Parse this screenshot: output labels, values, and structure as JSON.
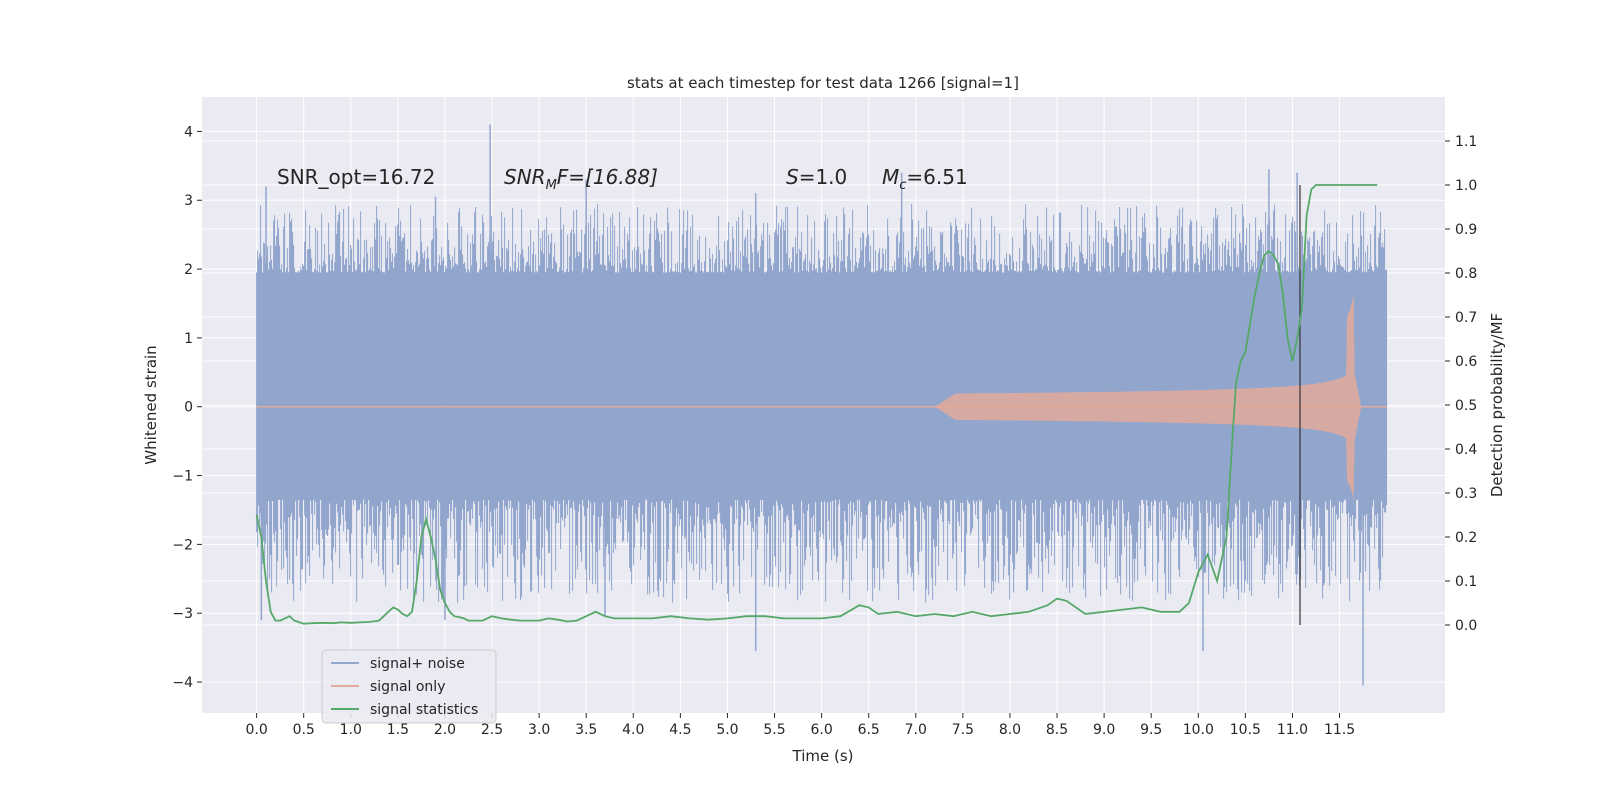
{
  "chart_data": {
    "type": "line",
    "title": "stats at each timestep for test data 1266 [signal=1]",
    "xlabel": "Time (s)",
    "ylabel": "Whitened strain",
    "y2label": "Detection probability/MF",
    "xlim": [
      -0.58,
      12.62
    ],
    "ylim": [
      -4.45,
      4.5
    ],
    "y2lim": [
      -0.2,
      1.2
    ],
    "xticks": [
      "0.0",
      "0.5",
      "1.0",
      "1.5",
      "2.0",
      "2.5",
      "3.0",
      "3.5",
      "4.0",
      "4.5",
      "5.0",
      "5.5",
      "6.0",
      "6.5",
      "7.0",
      "7.5",
      "8.0",
      "8.5",
      "9.0",
      "9.5",
      "10.0",
      "10.5",
      "11.0",
      "11.5"
    ],
    "yticks": [
      "4",
      "3",
      "2",
      "1",
      "0",
      "−1",
      "−2",
      "−3",
      "−4"
    ],
    "y2ticks": [
      "1.1",
      "1.0",
      "0.9",
      "0.8",
      "0.7",
      "0.6",
      "0.5",
      "0.4",
      "0.3",
      "0.2",
      "0.1",
      "0.0"
    ],
    "grid": true,
    "legend_position": "lower-left",
    "annotations": {
      "snr_opt": "SNR_opt=16.72",
      "snr_mf_main": "SNR",
      "snr_mf_sub": "M",
      "snr_mf_rest": "F=[16.88]",
      "s_main": "S",
      "s_rest": "=1.0",
      "mc_main": "M",
      "mc_sub": "c",
      "mc_rest": "=6.51"
    },
    "vline_x": 11.08,
    "series": [
      {
        "name": "signal+ noise",
        "color": "#92a6cd",
        "x_range": [
          0.0,
          12.0
        ],
        "band_core": [
          -1.35,
          1.95
        ],
        "peaks_high": [
          [
            0.1,
            3.2
          ],
          [
            2.48,
            4.1
          ],
          [
            1.9,
            3.05
          ],
          [
            3.5,
            3.3
          ],
          [
            5.3,
            3.1
          ],
          [
            6.85,
            3.4
          ],
          [
            10.75,
            3.45
          ],
          [
            11.05,
            3.4
          ]
        ],
        "peaks_low": [
          [
            0.05,
            -3.1
          ],
          [
            2.0,
            -3.1
          ],
          [
            3.7,
            -3.05
          ],
          [
            5.3,
            -3.55
          ],
          [
            10.05,
            -3.55
          ],
          [
            11.75,
            -4.05
          ]
        ]
      },
      {
        "name": "signal only",
        "color": "#e3a99b",
        "chirp_start": 7.2,
        "merger": 11.65,
        "end": 12.0
      },
      {
        "name": "signal statistics",
        "color": "#55a868",
        "x": [
          0.0,
          0.05,
          0.1,
          0.15,
          0.2,
          0.25,
          0.3,
          0.35,
          0.4,
          0.5,
          0.6,
          0.7,
          0.8,
          0.9,
          1.0,
          1.1,
          1.2,
          1.3,
          1.4,
          1.45,
          1.5,
          1.55,
          1.6,
          1.65,
          1.7,
          1.75,
          1.8,
          1.85,
          1.9,
          1.95,
          2.0,
          2.05,
          2.1,
          2.15,
          2.2,
          2.25,
          2.3,
          2.4,
          2.5,
          2.6,
          2.7,
          2.8,
          2.9,
          3.0,
          3.1,
          3.2,
          3.3,
          3.4,
          3.5,
          3.6,
          3.7,
          3.8,
          3.9,
          4.0,
          4.2,
          4.4,
          4.6,
          4.8,
          5.0,
          5.2,
          5.4,
          5.6,
          5.8,
          6.0,
          6.2,
          6.4,
          6.5,
          6.6,
          6.8,
          7.0,
          7.2,
          7.4,
          7.6,
          7.8,
          8.0,
          8.2,
          8.4,
          8.5,
          8.6,
          8.8,
          9.0,
          9.2,
          9.4,
          9.6,
          9.8,
          9.9,
          10.0,
          10.1,
          10.2,
          10.3,
          10.35,
          10.4,
          10.45,
          10.5,
          10.6,
          10.65,
          10.7,
          10.75,
          10.8,
          10.85,
          10.9,
          10.95,
          11.0,
          11.05,
          11.1,
          11.15,
          11.2,
          11.25,
          11.3,
          11.4,
          11.6,
          11.8,
          11.9
        ],
        "values": [
          0.25,
          0.2,
          0.1,
          0.03,
          0.01,
          0.01,
          0.015,
          0.02,
          0.01,
          0.003,
          0.004,
          0.005,
          0.004,
          0.006,
          0.005,
          0.006,
          0.007,
          0.01,
          0.03,
          0.04,
          0.035,
          0.025,
          0.02,
          0.03,
          0.1,
          0.2,
          0.24,
          0.2,
          0.15,
          0.08,
          0.05,
          0.03,
          0.02,
          0.018,
          0.015,
          0.01,
          0.01,
          0.01,
          0.02,
          0.015,
          0.012,
          0.01,
          0.01,
          0.01,
          0.015,
          0.012,
          0.008,
          0.01,
          0.02,
          0.03,
          0.02,
          0.015,
          0.015,
          0.015,
          0.015,
          0.02,
          0.015,
          0.012,
          0.015,
          0.02,
          0.02,
          0.015,
          0.015,
          0.015,
          0.02,
          0.045,
          0.04,
          0.025,
          0.03,
          0.02,
          0.025,
          0.02,
          0.03,
          0.02,
          0.025,
          0.03,
          0.045,
          0.06,
          0.055,
          0.025,
          0.03,
          0.035,
          0.04,
          0.03,
          0.03,
          0.05,
          0.12,
          0.16,
          0.1,
          0.2,
          0.38,
          0.55,
          0.6,
          0.62,
          0.75,
          0.8,
          0.84,
          0.85,
          0.84,
          0.82,
          0.75,
          0.65,
          0.6,
          0.65,
          0.72,
          0.93,
          0.99,
          1.0,
          1.0,
          1.0,
          1.0,
          1.0,
          1.0
        ]
      }
    ]
  }
}
